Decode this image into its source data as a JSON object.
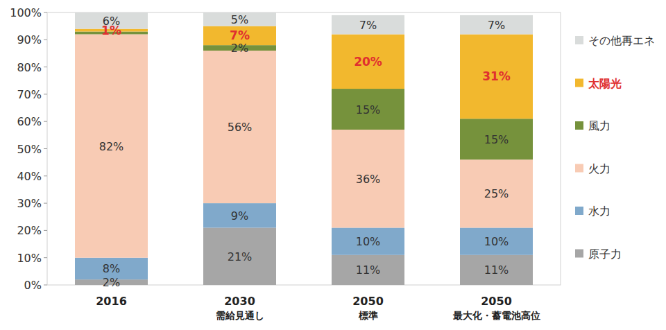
{
  "chart_data": {
    "type": "bar",
    "stacked": true,
    "data_labels": true,
    "grid": false,
    "legend": "right",
    "categories": [
      "2016",
      "2030\n需給見通し",
      "2050\n標準",
      "2050\n最大化・蓄電池高位"
    ],
    "ylim": [
      0,
      100
    ],
    "yticks": [
      {
        "value": 0,
        "label": "0%"
      },
      {
        "value": 10,
        "label": "10%"
      },
      {
        "value": 20,
        "label": "20%"
      },
      {
        "value": 30,
        "label": "30%"
      },
      {
        "value": 40,
        "label": "40%"
      },
      {
        "value": 50,
        "label": "50%"
      },
      {
        "value": 60,
        "label": "60%"
      },
      {
        "value": 70,
        "label": "70%"
      },
      {
        "value": 80,
        "label": "80%"
      },
      {
        "value": 90,
        "label": "90%"
      },
      {
        "value": 100,
        "label": "100%"
      }
    ],
    "series": [
      {
        "name": "原子力",
        "color": "#a6a6a6",
        "values": [
          2,
          21,
          11,
          11
        ],
        "value_labels": [
          "2%",
          "21%",
          "11%",
          "11%"
        ]
      },
      {
        "name": "水力",
        "color": "#80a9cb",
        "values": [
          8,
          9,
          10,
          10
        ],
        "value_labels": [
          "8%",
          "9%",
          "10%",
          "10%"
        ]
      },
      {
        "name": "火力",
        "color": "#f8cbb4",
        "values": [
          82,
          56,
          36,
          25
        ],
        "value_labels": [
          "82%",
          "56%",
          "36%",
          "25%"
        ]
      },
      {
        "name": "風力",
        "color": "#76923c",
        "values": [
          1,
          2,
          15,
          15
        ],
        "value_labels": [
          null,
          "2%",
          "15%",
          "15%"
        ]
      },
      {
        "name": "太陽光",
        "color": "#f2b82e",
        "values": [
          1,
          7,
          20,
          31
        ],
        "value_labels": [
          "1%",
          "7%",
          "20%",
          "31%"
        ]
      },
      {
        "name": "その他再エネ",
        "color": "#d9dcdb",
        "values": [
          6,
          5,
          7,
          7
        ],
        "value_labels": [
          "6%",
          "5%",
          "7%",
          "7%"
        ]
      }
    ]
  }
}
